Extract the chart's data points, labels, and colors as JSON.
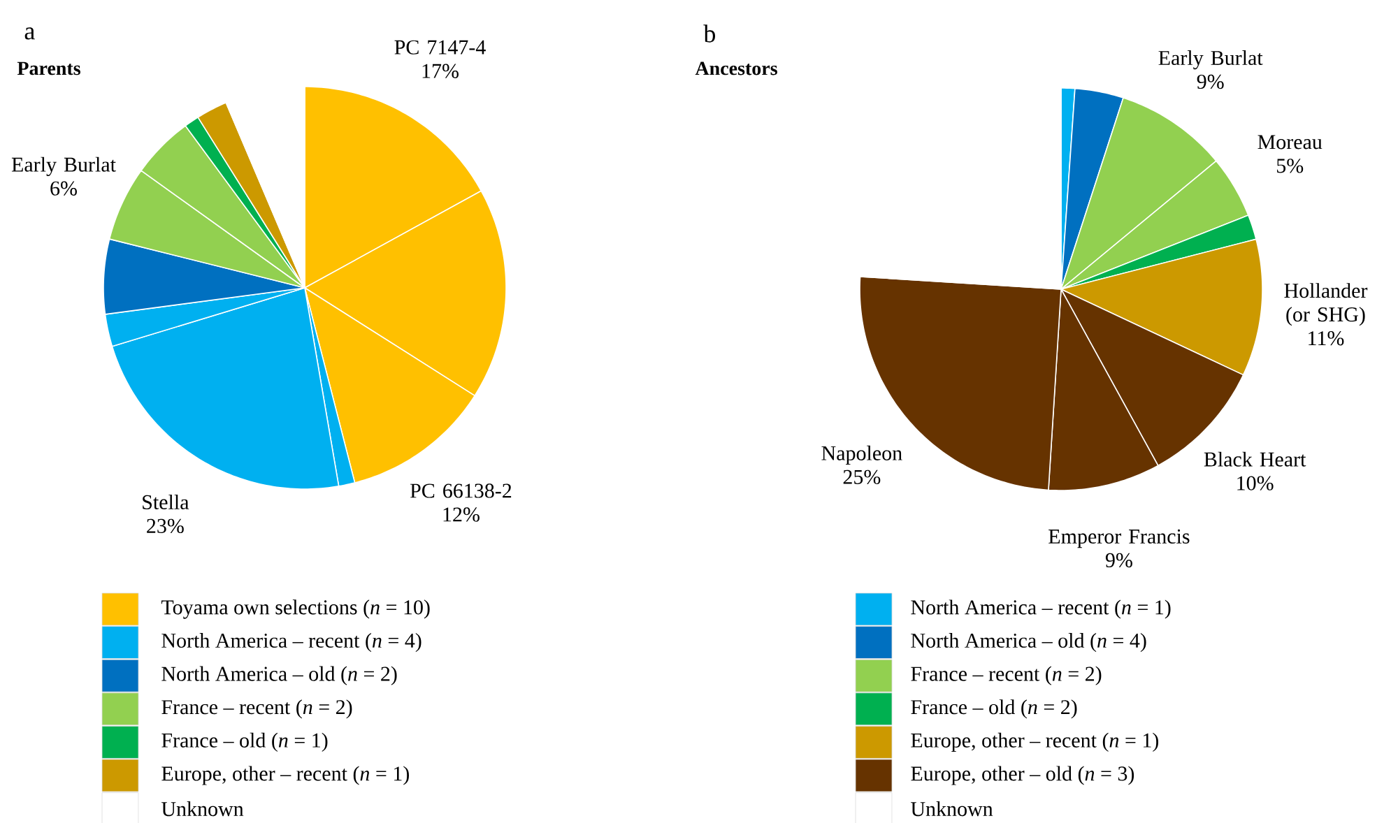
{
  "chart_data": [
    {
      "type": "pie",
      "title": "Parents",
      "annotations": [
        "a",
        "Toyama own selections (*n* = 10)",
        "North America – recent (*n* = 4)",
        "North America – old (*n* = 2)",
        "France – recent (*n* = 2)",
        "France – old (*n* = 1)",
        "Europe, other – recent (*n* = 1)",
        "Unknown"
      ],
      "categories": [
        "PC 7147-4",
        null,
        "PC 66138-2",
        null,
        "Stella",
        null,
        null,
        "Early Burlat",
        null,
        null,
        null,
        null
      ],
      "values": [
        17,
        17,
        12,
        1.3,
        23,
        2.6,
        6,
        6,
        5,
        1.2,
        2.5,
        6.4
      ],
      "value_labels": [
        "17%",
        null,
        "12%",
        null,
        "23%",
        null,
        null,
        "6%",
        null,
        null,
        null,
        null
      ],
      "colors": [
        "#ffc000",
        "#ffc000",
        "#ffc000",
        "#00b0f0",
        "#00b0f0",
        "#00b0f0",
        "#0070c0",
        "#92d050",
        "#92d050",
        "#00b050",
        "#cc9900",
        "#ffffff"
      ]
    },
    {
      "type": "pie",
      "title": "Ancestors",
      "annotations": [
        "b",
        "North America – recent (*n* = 1)",
        "North America – old (*n* = 4)",
        "France – recent (*n* = 2)",
        "France – old (*n* = 2)",
        "Europe, other – recent (*n* = 1)",
        "Europe, other – old (*n* = 3)",
        "Unknown"
      ],
      "categories": [
        null,
        null,
        "Early Burlat",
        "Moreau",
        null,
        "Hollander (or SHG)",
        "Black Heart",
        "Emperor Francis",
        "Napoleon",
        null
      ],
      "values": [
        1.1,
        3.9,
        9,
        5,
        2,
        11,
        10,
        9,
        25,
        24
      ],
      "value_labels": [
        null,
        null,
        "9%",
        "5%",
        null,
        "11%",
        "10%",
        "9%",
        "25%",
        null
      ],
      "colors": [
        "#00b0f0",
        "#0070c0",
        "#92d050",
        "#92d050",
        "#00b050",
        "#cc9900",
        "#663300",
        "#663300",
        "#663300",
        "#ffffff"
      ]
    }
  ]
}
